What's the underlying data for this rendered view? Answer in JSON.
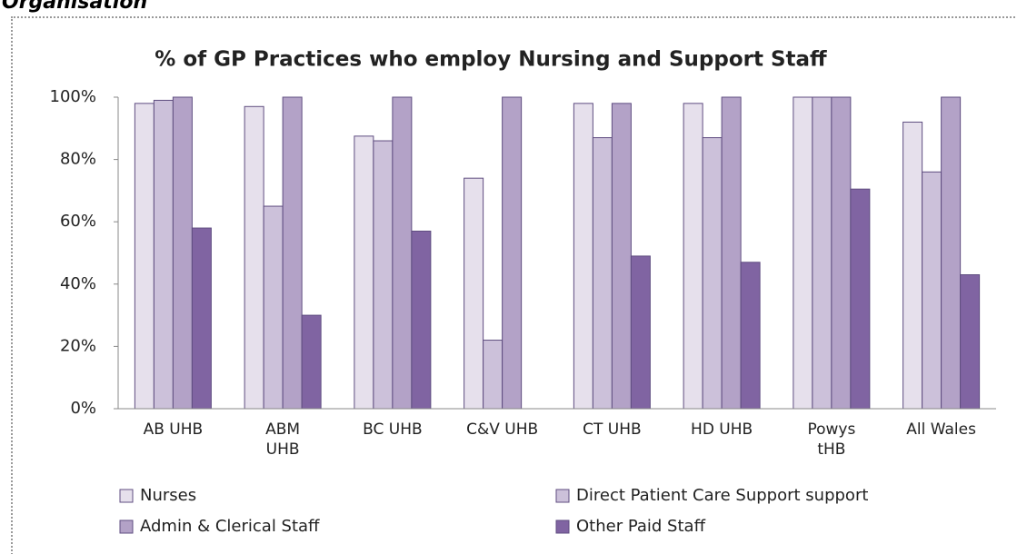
{
  "heading": "Organisation",
  "chart_data": {
    "type": "bar",
    "title": "% of GP Practices who employ Nursing and Support Staff",
    "categories": [
      "AB UHB",
      "ABM UHB",
      "BC UHB",
      "C&V UHB",
      "CT UHB",
      "HD UHB",
      "Powys tHB",
      "All Wales"
    ],
    "series": [
      {
        "name": "Nurses",
        "color": "#e6e0ec",
        "values": [
          98,
          97,
          87.5,
          74,
          98,
          98,
          100,
          92
        ]
      },
      {
        "name": "Direct Patient Care Support support",
        "color": "#ccc1da",
        "values": [
          99,
          65,
          86,
          22,
          87,
          87,
          100,
          76
        ]
      },
      {
        "name": "Admin & Clerical Staff",
        "color": "#b3a2c7",
        "values": [
          100,
          100,
          100,
          100,
          98,
          100,
          100,
          100
        ]
      },
      {
        "name": "Other Paid Staff",
        "color": "#8064a2",
        "values": [
          58,
          30,
          57,
          0,
          49,
          47,
          70.5,
          43
        ]
      }
    ],
    "ylim": [
      0,
      100
    ],
    "yticks": [
      {
        "value": 0,
        "label": "0%"
      },
      {
        "value": 20,
        "label": "20%"
      },
      {
        "value": 40,
        "label": "40%"
      },
      {
        "value": 60,
        "label": "60%"
      },
      {
        "value": 80,
        "label": "80%"
      },
      {
        "value": 100,
        "label": "100%"
      }
    ],
    "grid": false
  }
}
